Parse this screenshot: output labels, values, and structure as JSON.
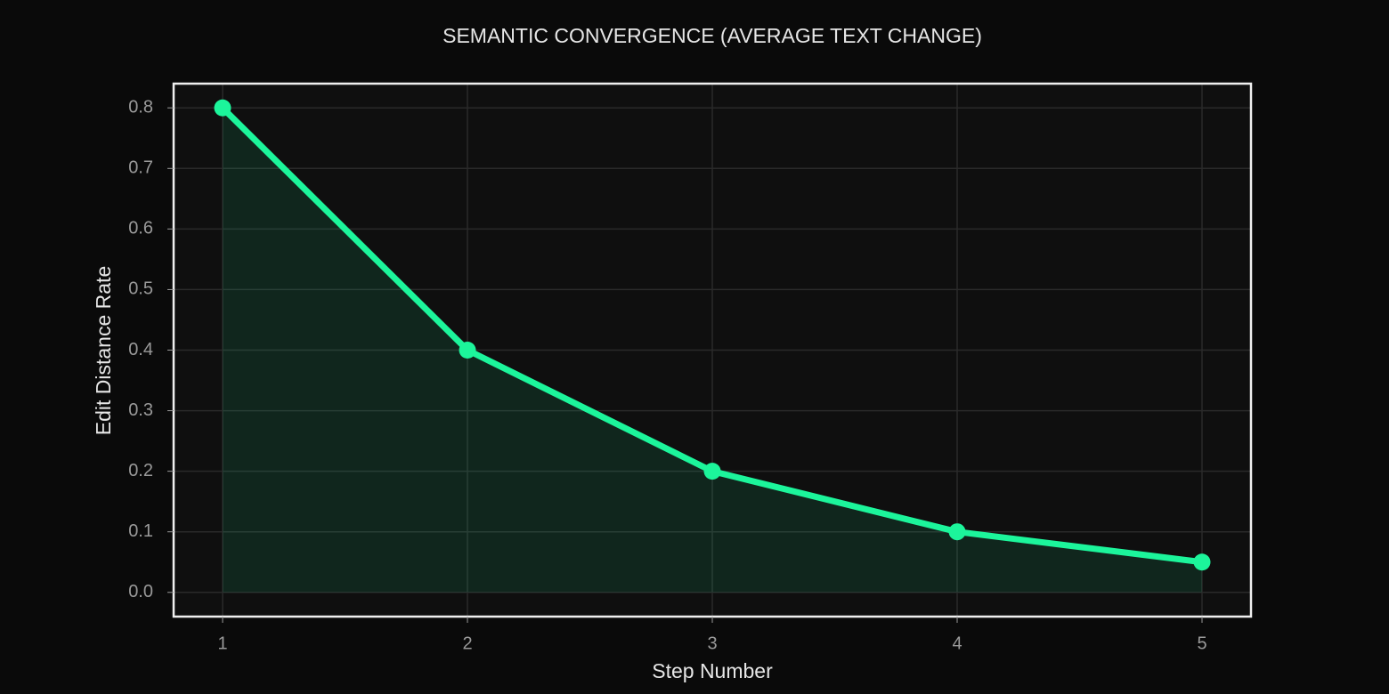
{
  "chart_data": {
    "type": "line",
    "title": "SEMANTIC CONVERGENCE (AVERAGE TEXT CHANGE)",
    "x_label": "Step Number",
    "y_label": "Edit Distance Rate",
    "x": [
      1,
      2,
      3,
      4,
      5
    ],
    "values": [
      0.8,
      0.4,
      0.2,
      0.1,
      0.05
    ],
    "color": "#1cf59b",
    "area": true,
    "xlim": [
      0.8,
      5.2
    ],
    "xticks": [
      1,
      2,
      3,
      4,
      5
    ],
    "ylim": [
      -0.04,
      0.84
    ],
    "yticks": [
      {
        "value": 0,
        "label": "0.0"
      },
      0.1,
      0.2,
      0.3,
      0.4,
      0.5,
      0.6,
      0.7,
      0.8
    ],
    "grid": true
  }
}
